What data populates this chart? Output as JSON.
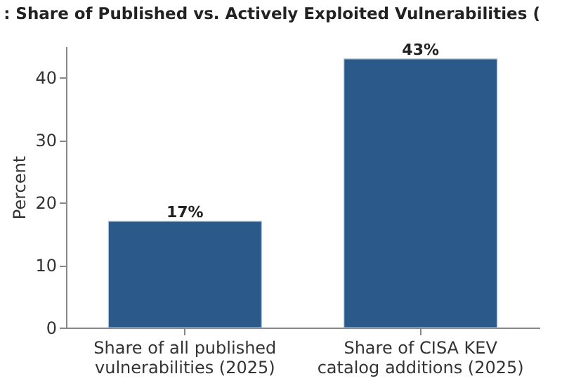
{
  "chart_data": {
    "type": "bar",
    "title": ": Share of Published vs. Actively Exploited Vulnerabilities (",
    "ylabel": "Percent",
    "categories": [
      "Share of all published vulnerabilities (2025)",
      "Share of CISA KEV catalog additions (2025)"
    ],
    "values": [
      17,
      43
    ],
    "color": "#2b5a8a",
    "value_labels": [
      "17%",
      "43%"
    ],
    "ylim": [
      0,
      45
    ],
    "yticks": [
      0,
      10,
      20,
      30,
      40
    ],
    "grid": false
  }
}
